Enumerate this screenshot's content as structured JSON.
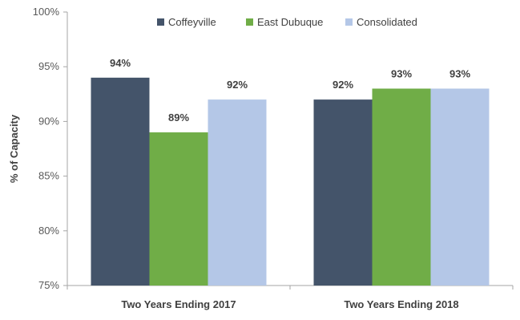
{
  "chart_data": {
    "type": "bar",
    "title": "",
    "xlabel": "",
    "ylabel": "% of Capacity",
    "ylim": [
      75,
      100
    ],
    "yticks": [
      "75%",
      "80%",
      "85%",
      "90%",
      "95%",
      "100%"
    ],
    "ytick_values": [
      75,
      80,
      85,
      90,
      95,
      100
    ],
    "categories": [
      "Two Years Ending 2017",
      "Two Years Ending 2018"
    ],
    "series": [
      {
        "name": "Coffeyville",
        "values": [
          94,
          92
        ],
        "labels": [
          "94%",
          "92%"
        ],
        "color": "#44546a"
      },
      {
        "name": "East Dubuque",
        "values": [
          89,
          93
        ],
        "labels": [
          "89%",
          "93%"
        ],
        "color": "#70ad47"
      },
      {
        "name": "Consolidated",
        "values": [
          92,
          93
        ],
        "labels": [
          "92%",
          "93%"
        ],
        "color": "#b4c7e7"
      }
    ],
    "grid": false,
    "legend_position": "top"
  }
}
